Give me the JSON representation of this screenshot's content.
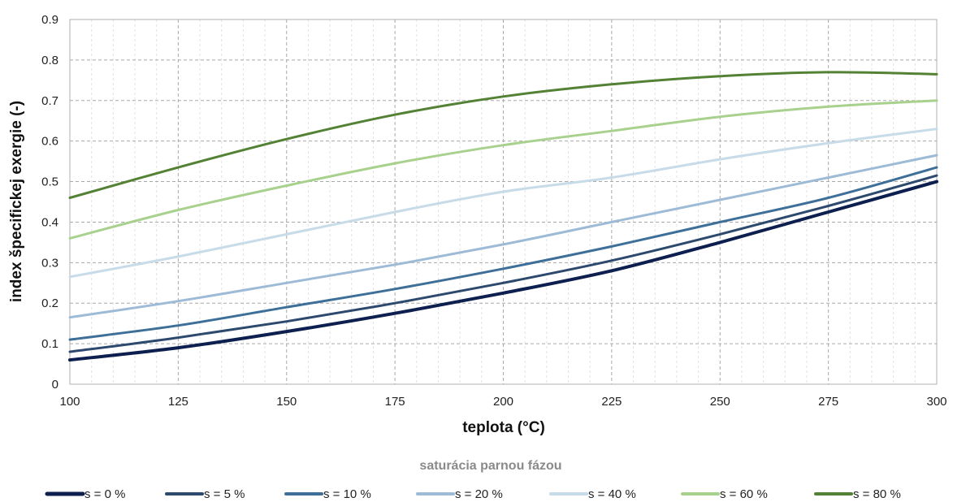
{
  "chart_data": {
    "type": "line",
    "xlabel": "teplota (°C)",
    "ylabel": "index špecifickej exergie (-)",
    "legend_title": "saturácia parnou fázou",
    "legend_position": "bottom",
    "xlim": [
      100,
      300
    ],
    "ylim": [
      0,
      0.9
    ],
    "x_ticks": [
      100,
      125,
      150,
      175,
      200,
      225,
      250,
      275,
      300
    ],
    "y_ticks": [
      0,
      0.1,
      0.2,
      0.3,
      0.4,
      0.5,
      0.6,
      0.7,
      0.8,
      0.9
    ],
    "x_tick_labels": [
      "100",
      "125",
      "150",
      "175",
      "200",
      "225",
      "250",
      "275",
      "300"
    ],
    "y_tick_labels": [
      "0",
      "0.1",
      "0.2",
      "0.3",
      "0.4",
      "0.5",
      "0.6",
      "0.7",
      "0.8",
      "0.9"
    ],
    "grid": true,
    "x": [
      100,
      125,
      150,
      175,
      200,
      225,
      250,
      275,
      300
    ],
    "series": [
      {
        "name": "s = 0 %",
        "color": "#0d1f4e",
        "values": [
          0.06,
          0.09,
          0.13,
          0.175,
          0.225,
          0.28,
          0.35,
          0.425,
          0.5
        ]
      },
      {
        "name": "s = 5 %",
        "color": "#2d4a6e",
        "values": [
          0.08,
          0.115,
          0.155,
          0.2,
          0.25,
          0.305,
          0.37,
          0.44,
          0.515
        ]
      },
      {
        "name": "s = 10 %",
        "color": "#3d6f98",
        "values": [
          0.11,
          0.145,
          0.19,
          0.235,
          0.285,
          0.34,
          0.4,
          0.46,
          0.535
        ]
      },
      {
        "name": "s = 20 %",
        "color": "#9dbbd6",
        "values": [
          0.165,
          0.205,
          0.25,
          0.295,
          0.345,
          0.4,
          0.455,
          0.51,
          0.565
        ]
      },
      {
        "name": "s = 40 %",
        "color": "#c7dbe8",
        "values": [
          0.265,
          0.315,
          0.37,
          0.425,
          0.475,
          0.51,
          0.555,
          0.595,
          0.63
        ]
      },
      {
        "name": "s = 60 %",
        "color": "#a9d18e",
        "values": [
          0.36,
          0.43,
          0.49,
          0.545,
          0.59,
          0.625,
          0.66,
          0.685,
          0.7
        ]
      },
      {
        "name": "s = 80 %",
        "color": "#548235",
        "values": [
          0.46,
          0.535,
          0.605,
          0.665,
          0.71,
          0.74,
          0.76,
          0.77,
          0.765
        ]
      }
    ]
  }
}
